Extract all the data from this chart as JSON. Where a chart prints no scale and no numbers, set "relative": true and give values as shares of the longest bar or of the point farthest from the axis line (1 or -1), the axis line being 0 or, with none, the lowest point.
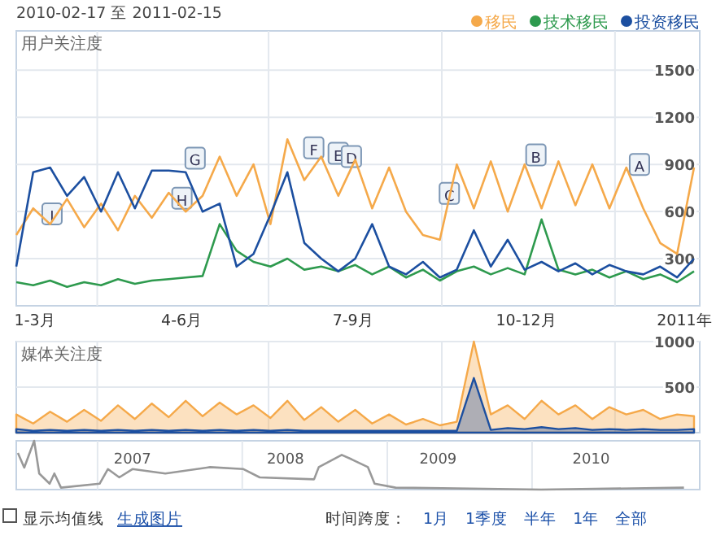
{
  "chart_data": [
    {
      "type": "line",
      "title": "用户关注度",
      "legend": "top right",
      "grid": true,
      "annotations": [
        "2010-02-17 至 2011-02-15",
        {
          "text": "I",
          "x": "2010-03-08",
          "y": 580
        },
        {
          "text": "H",
          "x": "2010-05-16",
          "y": 680
        },
        {
          "text": "G",
          "x": "2010-05-23",
          "y": 935
        },
        {
          "text": "F",
          "x": "2010-07-25",
          "y": 1000
        },
        {
          "text": "E",
          "x": "2010-08-07",
          "y": 965
        },
        {
          "text": "D",
          "x": "2010-08-14",
          "y": 945
        },
        {
          "text": "C",
          "x": "2010-10-05",
          "y": 710
        },
        {
          "text": "B",
          "x": "2010-11-20",
          "y": 955
        },
        {
          "text": "A",
          "x": "2011-01-14",
          "y": 895
        }
      ],
      "xlim": [
        "2010-02-17",
        "2011-02-15"
      ],
      "ylim": [
        0,
        1750
      ],
      "yticks": [
        300,
        600,
        900,
        1200,
        1500
      ],
      "xticks": [
        {
          "value": "2010-02-27",
          "label": "1-3月"
        },
        {
          "value": "2010-04-01",
          "label": null
        },
        {
          "value": "2010-05-16",
          "label": "4-6月"
        },
        {
          "value": "2010-07-01",
          "label": null
        },
        {
          "value": "2010-08-15",
          "label": "7-9月"
        },
        {
          "value": "2010-10-01",
          "label": null
        },
        {
          "value": "2010-11-15",
          "label": "10-12月"
        },
        {
          "value": "2011-01-01",
          "label": null
        },
        {
          "value": "2011-02-07",
          "label": "2011年"
        }
      ],
      "x": [
        "2010-02-17",
        "2010-02-26",
        "2010-03-07",
        "2010-03-16",
        "2010-03-25",
        "2010-04-03",
        "2010-04-12",
        "2010-04-21",
        "2010-04-30",
        "2010-05-09",
        "2010-05-18",
        "2010-05-27",
        "2010-06-05",
        "2010-06-14",
        "2010-06-23",
        "2010-07-02",
        "2010-07-11",
        "2010-07-20",
        "2010-07-29",
        "2010-08-07",
        "2010-08-16",
        "2010-08-25",
        "2010-09-03",
        "2010-09-12",
        "2010-09-21",
        "2010-09-30",
        "2010-10-09",
        "2010-10-18",
        "2010-10-27",
        "2010-11-05",
        "2010-11-14",
        "2010-11-23",
        "2010-12-02",
        "2010-12-11",
        "2010-12-20",
        "2010-12-29",
        "2011-01-07",
        "2011-01-16",
        "2011-01-25",
        "2011-02-03",
        "2011-02-12"
      ],
      "series": [
        {
          "name": "移民",
          "color": "#f5a94a",
          "values": [
            450,
            620,
            520,
            680,
            500,
            650,
            480,
            700,
            560,
            720,
            600,
            700,
            950,
            700,
            900,
            520,
            1060,
            800,
            950,
            700,
            930,
            620,
            880,
            600,
            450,
            420,
            900,
            620,
            920,
            600,
            900,
            620,
            920,
            640,
            900,
            620,
            880,
            620,
            400,
            330,
            880
          ]
        },
        {
          "name": "技术移民",
          "color": "#2e9a4e",
          "values": [
            150,
            130,
            160,
            120,
            150,
            130,
            170,
            140,
            160,
            170,
            180,
            190,
            520,
            350,
            280,
            250,
            300,
            230,
            250,
            220,
            260,
            200,
            250,
            180,
            230,
            160,
            220,
            250,
            200,
            240,
            200,
            550,
            230,
            200,
            230,
            180,
            220,
            170,
            200,
            150,
            220
          ]
        },
        {
          "name": "投资移民",
          "color": "#1c4fa0",
          "values": [
            250,
            850,
            880,
            700,
            820,
            600,
            850,
            620,
            860,
            860,
            850,
            600,
            650,
            250,
            330,
            580,
            850,
            400,
            300,
            220,
            300,
            520,
            250,
            200,
            280,
            180,
            230,
            480,
            250,
            420,
            230,
            280,
            220,
            270,
            200,
            260,
            220,
            200,
            250,
            180,
            300
          ]
        }
      ]
    },
    {
      "type": "area",
      "title": "媒体关注度",
      "grid": true,
      "tick_labels": "y",
      "xlim": [
        "2010-02-17",
        "2011-02-15"
      ],
      "ylim": [
        0,
        1000
      ],
      "yticks": [
        500,
        1000
      ],
      "xticks": [
        {
          "value": "2010-04-01",
          "label": null
        },
        {
          "value": "2010-07-01",
          "label": null
        },
        {
          "value": "2010-10-01",
          "label": null
        },
        {
          "value": "2011-01-01",
          "label": null
        }
      ],
      "x": [
        "2010-02-17",
        "2010-02-26",
        "2010-03-07",
        "2010-03-16",
        "2010-03-25",
        "2010-04-03",
        "2010-04-12",
        "2010-04-21",
        "2010-04-30",
        "2010-05-09",
        "2010-05-18",
        "2010-05-27",
        "2010-06-05",
        "2010-06-14",
        "2010-06-23",
        "2010-07-02",
        "2010-07-11",
        "2010-07-20",
        "2010-07-29",
        "2010-08-07",
        "2010-08-16",
        "2010-08-25",
        "2010-09-03",
        "2010-09-12",
        "2010-09-21",
        "2010-09-30",
        "2010-10-09",
        "2010-10-18",
        "2010-10-27",
        "2010-11-05",
        "2010-11-14",
        "2010-11-23",
        "2010-12-02",
        "2010-12-11",
        "2010-12-20",
        "2010-12-29",
        "2011-01-07",
        "2011-01-16",
        "2011-01-25",
        "2011-02-03",
        "2011-02-12"
      ],
      "series": [
        {
          "color": "#f5a94a",
          "values": [
            200,
            100,
            230,
            120,
            250,
            130,
            300,
            150,
            320,
            170,
            350,
            180,
            330,
            200,
            300,
            160,
            350,
            140,
            280,
            120,
            250,
            100,
            200,
            90,
            150,
            80,
            120,
            1000,
            200,
            300,
            150,
            350,
            200,
            300,
            150,
            280,
            200,
            250,
            150,
            200,
            180
          ]
        },
        {
          "color": "#1c4fa0",
          "values": [
            40,
            20,
            30,
            20,
            30,
            20,
            30,
            20,
            30,
            20,
            30,
            20,
            30,
            20,
            30,
            20,
            30,
            20,
            20,
            20,
            20,
            20,
            20,
            20,
            20,
            20,
            20,
            600,
            30,
            50,
            40,
            60,
            40,
            50,
            30,
            40,
            30,
            40,
            30,
            30,
            40
          ]
        }
      ]
    },
    {
      "type": "line",
      "relative": true,
      "grid": "x",
      "tick_labels": "x",
      "annotations": [
        "显示均值线",
        "生成图片",
        "时间跨度：",
        "1月",
        "1季度",
        "半年",
        "1年",
        "全部"
      ],
      "xlim": [
        "2006-06-10",
        "2011-02-28"
      ],
      "xticks": [
        {
          "value": "2007-01-01",
          "label": null
        },
        {
          "value": "2007-03-30",
          "label": "2007"
        },
        {
          "value": "2008-01-01",
          "label": null
        },
        {
          "value": "2008-04-19",
          "label": "2008"
        },
        {
          "value": "2009-01-01",
          "label": null
        },
        {
          "value": "2009-05-09",
          "label": "2009"
        },
        {
          "value": "2010-01-01",
          "label": null
        },
        {
          "value": "2010-05-30",
          "label": "2010"
        }
      ],
      "x": [
        "2006-06-14",
        "2006-06-30",
        "2006-07-25",
        "2006-08-07",
        "2006-09-02",
        "2006-09-14",
        "2006-10-01",
        "2007-01-06",
        "2007-01-27",
        "2007-02-25",
        "2007-03-30",
        "2007-06-21",
        "2007-10-12",
        "2008-01-04",
        "2008-02-14",
        "2008-06-30",
        "2008-07-12",
        "2008-09-08",
        "2008-10-03",
        "2008-11-13",
        "2008-11-30",
        "2009-01-22",
        "2010-01-24",
        "2011-01-19"
      ],
      "series": [
        {
          "color": "#999999",
          "values": [
            0.75,
            0.45,
            1,
            0.33,
            0.12,
            0.33,
            0.04,
            0.12,
            0.42,
            0.25,
            0.42,
            0.33,
            0.46,
            0.42,
            0.25,
            0.21,
            0.46,
            0.71,
            0.62,
            0.46,
            0.12,
            0.04,
            0,
            0.04
          ]
        }
      ]
    }
  ]
}
